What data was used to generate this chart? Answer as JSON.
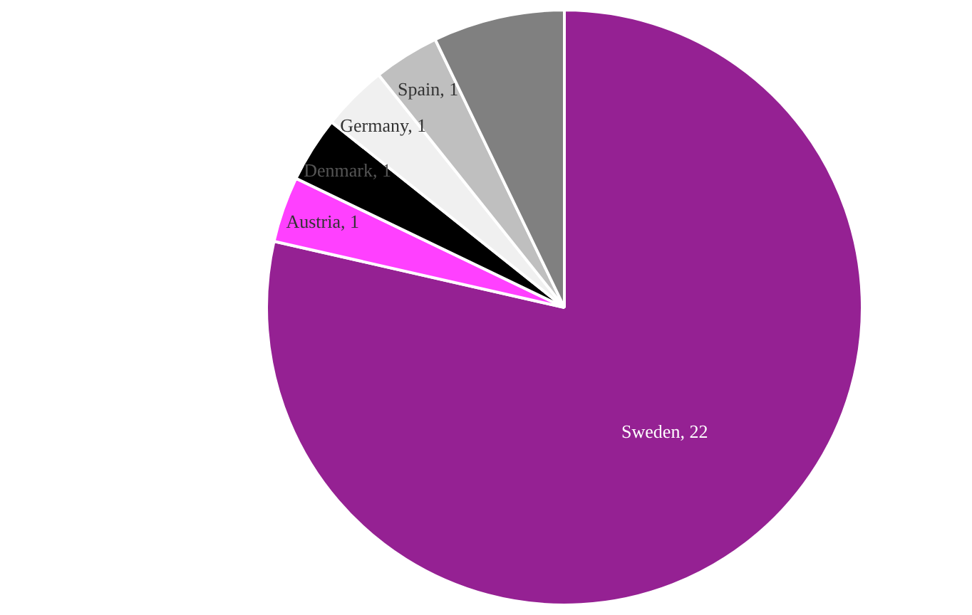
{
  "chart_data": {
    "type": "pie",
    "categories": [
      "Sweden, 22",
      "Austria, 1",
      "Denmark, 1",
      "Germany, 1",
      "Spain, 1",
      null
    ],
    "values": [
      22,
      1,
      1,
      1,
      1,
      2
    ],
    "colors": [
      "#952193",
      "#ff40ff",
      "#000000",
      "#f0f0f0",
      "#bfbfbf",
      "#808080"
    ],
    "legend": false
  }
}
